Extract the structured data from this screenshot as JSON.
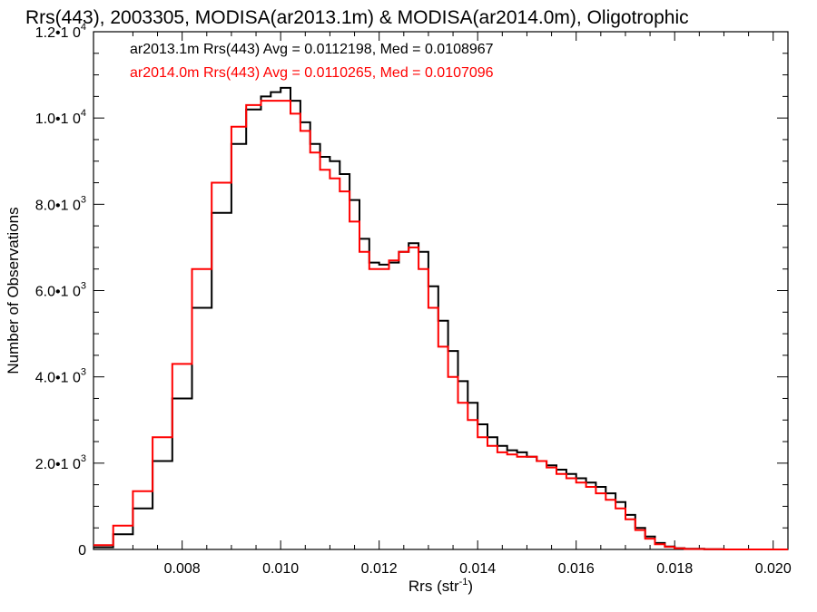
{
  "chart_data": {
    "type": "line",
    "title": "Rrs(443), 2003305, MODISA(ar2013.1m) & MODISA(ar2014.0m), Oligotrophic",
    "xlabel": "Rrs (str",
    "xlabel_sup": "-1",
    "xlabel_end": ")",
    "ylabel": "Number of Observations",
    "xlim": [
      0.0062,
      0.0203
    ],
    "ylim": [
      0,
      12000
    ],
    "x_ticks": [
      {
        "value": 0.008,
        "label": "0.008"
      },
      {
        "value": 0.01,
        "label": "0.010"
      },
      {
        "value": 0.012,
        "label": "0.012"
      },
      {
        "value": 0.014,
        "label": "0.014"
      },
      {
        "value": 0.016,
        "label": "0.016"
      },
      {
        "value": 0.018,
        "label": "0.018"
      },
      {
        "value": 0.02,
        "label": "0.020"
      }
    ],
    "y_ticks": [
      {
        "value": 0,
        "mant": "0",
        "exp": ""
      },
      {
        "value": 2000,
        "mant": "2.0•1 0",
        "exp": "3"
      },
      {
        "value": 4000,
        "mant": "4.0•1 0",
        "exp": "3"
      },
      {
        "value": 6000,
        "mant": "6.0•1 0",
        "exp": "3"
      },
      {
        "value": 8000,
        "mant": "8.0•1 0",
        "exp": "3"
      },
      {
        "value": 10000,
        "mant": "1.0•1 0",
        "exp": "4"
      },
      {
        "value": 12000,
        "mant": "1.2•1 0",
        "exp": "4"
      }
    ],
    "legend_placement": "top-left",
    "grid": false,
    "series": [
      {
        "label": "ar2013.1m Rrs(443) Avg = 0.0112198, Med = 0.0108967",
        "color": "#000000",
        "step": "histogram",
        "x": [
          0.0062,
          0.0066,
          0.007,
          0.0074,
          0.0078,
          0.0082,
          0.0086,
          0.009,
          0.0093,
          0.0096,
          0.0098,
          0.01,
          0.0102,
          0.0104,
          0.0106,
          0.0108,
          0.011,
          0.0112,
          0.0114,
          0.0116,
          0.0118,
          0.012,
          0.0122,
          0.0124,
          0.0126,
          0.0128,
          0.013,
          0.0132,
          0.0134,
          0.0136,
          0.0138,
          0.014,
          0.0142,
          0.0144,
          0.0146,
          0.0148,
          0.015,
          0.0152,
          0.0154,
          0.0156,
          0.0158,
          0.016,
          0.0162,
          0.0164,
          0.0166,
          0.0168,
          0.017,
          0.0172,
          0.0174,
          0.0176,
          0.0178,
          0.018,
          0.0182,
          0.0186,
          0.019,
          0.0203
        ],
        "values": [
          50,
          350,
          950,
          2050,
          3500,
          5600,
          7800,
          9400,
          10200,
          10500,
          10600,
          10700,
          10400,
          9900,
          9400,
          9100,
          9000,
          8700,
          8100,
          7200,
          6650,
          6600,
          6650,
          6900,
          7100,
          6900,
          6100,
          5300,
          4600,
          3900,
          3400,
          2900,
          2600,
          2400,
          2300,
          2250,
          2150,
          2050,
          1950,
          1850,
          1750,
          1650,
          1550,
          1450,
          1300,
          1100,
          800,
          500,
          300,
          150,
          70,
          30,
          15,
          5,
          0,
          0
        ]
      },
      {
        "label": "ar2014.0m Rrs(443) Avg = 0.0110265, Med = 0.0107096",
        "color": "#ff0000",
        "step": "histogram",
        "x": [
          0.0062,
          0.0066,
          0.007,
          0.0074,
          0.0078,
          0.0082,
          0.0086,
          0.009,
          0.0093,
          0.0096,
          0.0098,
          0.01,
          0.0102,
          0.0104,
          0.0106,
          0.0108,
          0.011,
          0.0112,
          0.0114,
          0.0116,
          0.0118,
          0.012,
          0.0122,
          0.0124,
          0.0126,
          0.0128,
          0.013,
          0.0132,
          0.0134,
          0.0136,
          0.0138,
          0.014,
          0.0142,
          0.0144,
          0.0146,
          0.0148,
          0.015,
          0.0152,
          0.0154,
          0.0156,
          0.0158,
          0.016,
          0.0162,
          0.0164,
          0.0166,
          0.0168,
          0.017,
          0.0172,
          0.0174,
          0.0176,
          0.0178,
          0.018,
          0.0182,
          0.0186,
          0.019,
          0.0203
        ],
        "values": [
          100,
          550,
          1350,
          2600,
          4300,
          6500,
          8500,
          9800,
          10300,
          10400,
          10400,
          10400,
          10100,
          9700,
          9200,
          8800,
          8600,
          8300,
          7600,
          6900,
          6500,
          6500,
          6700,
          6900,
          7000,
          6500,
          5600,
          4700,
          4000,
          3400,
          3000,
          2600,
          2400,
          2250,
          2200,
          2150,
          2150,
          2050,
          1900,
          1750,
          1650,
          1550,
          1450,
          1300,
          1150,
          950,
          700,
          450,
          250,
          120,
          60,
          25,
          10,
          5,
          0,
          0
        ]
      }
    ]
  }
}
